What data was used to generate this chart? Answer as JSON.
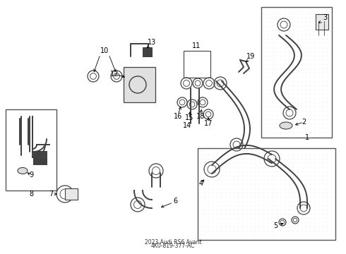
{
  "bg_color": "#f0f0f0",
  "line_color": "#404040",
  "label_fontsize": 7,
  "title": "2023 Audi RS6 Avant\n4K0-819-377-AC"
}
